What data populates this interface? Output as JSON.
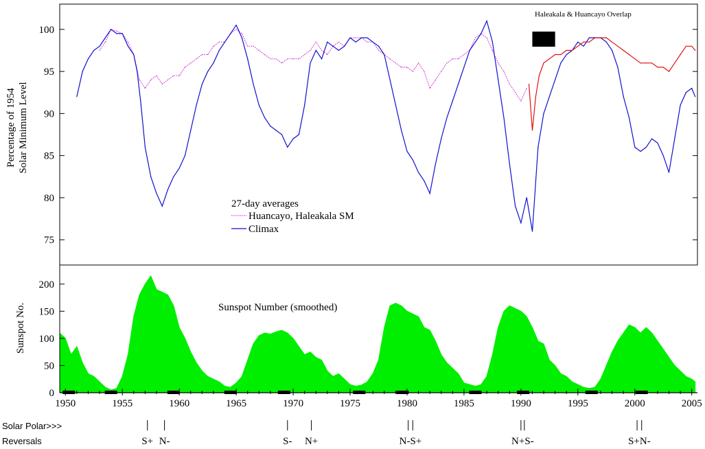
{
  "chart_data": [
    {
      "type": "line",
      "ylabel": "Percentage of 1954 Solar Minimum Level",
      "ylabel_lines": [
        "Percentage of 1954",
        "Solar Minimum Level"
      ],
      "ylim": [
        72,
        103
      ],
      "xlim": [
        1949.5,
        2005.5
      ],
      "yticks": [
        75,
        80,
        85,
        90,
        95,
        100
      ],
      "grid": false,
      "legend": {
        "title": "27-day averages",
        "position": "center-left"
      },
      "annotation": "Haleakala & Huancayo Overlap",
      "overlap_bar": [
        1991.0,
        1993.0
      ],
      "colors": {
        "huancayo": "#d633d6",
        "climax": "#1010d0",
        "haleakala": "#e01010"
      },
      "series": [
        {
          "name": "Huancayo, Haleakala SM",
          "style": "dotted",
          "x": [
            1953.0,
            1953.5,
            1954.0,
            1954.5,
            1955.0,
            1955.5,
            1956.0,
            1956.5,
            1957.0,
            1957.5,
            1958.0,
            1958.5,
            1959.0,
            1959.5,
            1960.0,
            1960.5,
            1961.0,
            1961.5,
            1962.0,
            1962.5,
            1963.0,
            1963.5,
            1964.0,
            1964.5,
            1965.0,
            1965.5,
            1966.0,
            1966.5,
            1967.0,
            1967.5,
            1968.0,
            1968.5,
            1969.0,
            1969.5,
            1970.0,
            1970.5,
            1971.0,
            1971.5,
            1972.0,
            1972.5,
            1973.0,
            1973.5,
            1974.0,
            1974.5,
            1975.0,
            1975.5,
            1976.0,
            1976.5,
            1977.0,
            1977.5,
            1978.0,
            1978.5,
            1979.0,
            1979.5,
            1980.0,
            1980.5,
            1981.0,
            1981.5,
            1982.0,
            1982.5,
            1983.0,
            1983.5,
            1984.0,
            1984.5,
            1985.0,
            1985.5,
            1986.0,
            1986.5,
            1987.0,
            1987.5,
            1988.0,
            1988.5,
            1989.0,
            1989.5,
            1990.0,
            1990.5
          ],
          "y": [
            97.5,
            98.5,
            100.0,
            99.8,
            99.5,
            98.5,
            97.0,
            94.0,
            93.0,
            94.0,
            94.5,
            93.5,
            94.0,
            94.5,
            94.5,
            95.5,
            96.0,
            96.5,
            97.0,
            97.0,
            98.0,
            98.5,
            98.5,
            99.5,
            100.0,
            99.5,
            98.0,
            98.0,
            97.5,
            97.0,
            96.5,
            96.5,
            96.0,
            96.5,
            96.5,
            96.5,
            97.0,
            97.5,
            98.5,
            97.5,
            97.0,
            98.0,
            98.5,
            98.0,
            99.0,
            99.0,
            99.0,
            98.5,
            98.5,
            97.5,
            97.0,
            96.5,
            96.0,
            95.5,
            95.5,
            95.0,
            96.0,
            95.0,
            93.0,
            94.0,
            95.0,
            96.0,
            96.5,
            96.5,
            97.0,
            97.5,
            99.0,
            99.5,
            99.0,
            97.5,
            96.0,
            95.0,
            93.5,
            92.5,
            91.5,
            93.0
          ]
        },
        {
          "name": "Climax",
          "style": "solid",
          "x": [
            1951.0,
            1951.5,
            1952.0,
            1952.5,
            1953.0,
            1953.5,
            1954.0,
            1954.5,
            1955.0,
            1955.5,
            1956.0,
            1956.3,
            1956.6,
            1957.0,
            1957.5,
            1958.0,
            1958.5,
            1959.0,
            1959.5,
            1960.0,
            1960.5,
            1961.0,
            1961.5,
            1962.0,
            1962.5,
            1963.0,
            1963.5,
            1964.0,
            1964.5,
            1965.0,
            1965.5,
            1966.0,
            1966.5,
            1967.0,
            1967.5,
            1968.0,
            1968.5,
            1969.0,
            1969.5,
            1970.0,
            1970.5,
            1971.0,
            1971.5,
            1972.0,
            1972.5,
            1973.0,
            1973.5,
            1974.0,
            1974.5,
            1975.0,
            1975.5,
            1976.0,
            1976.5,
            1977.0,
            1977.5,
            1978.0,
            1978.5,
            1979.0,
            1979.5,
            1980.0,
            1980.5,
            1981.0,
            1981.5,
            1982.0,
            1982.5,
            1983.0,
            1983.5,
            1984.0,
            1984.5,
            1985.0,
            1985.5,
            1986.0,
            1986.5,
            1987.0,
            1987.5,
            1988.0,
            1988.5,
            1989.0,
            1989.5,
            1990.0,
            1990.5,
            1991.0,
            1991.5,
            1992.0,
            1992.5,
            1993.0,
            1993.5,
            1994.0,
            1994.5,
            1995.0,
            1995.5,
            1996.0,
            1996.5,
            1997.0,
            1997.5,
            1998.0,
            1998.5,
            1999.0,
            1999.5,
            2000.0,
            2000.5,
            2001.0,
            2001.5,
            2002.0,
            2002.5,
            2003.0,
            2003.5,
            2004.0,
            2004.5,
            2005.0,
            2005.3
          ],
          "y": [
            92.0,
            95.0,
            96.5,
            97.5,
            98.0,
            99.0,
            100.0,
            99.5,
            99.5,
            98.0,
            97.0,
            95.0,
            91.5,
            86.0,
            82.5,
            80.5,
            79.0,
            81.0,
            82.5,
            83.5,
            85.0,
            88.0,
            91.0,
            93.5,
            95.0,
            96.0,
            97.5,
            98.5,
            99.5,
            100.5,
            99.0,
            96.5,
            93.5,
            91.0,
            89.5,
            88.5,
            88.0,
            87.5,
            86.0,
            87.0,
            87.5,
            91.0,
            96.0,
            97.5,
            96.5,
            98.5,
            98.0,
            97.5,
            98.0,
            99.0,
            98.5,
            99.0,
            99.0,
            98.5,
            98.0,
            97.0,
            94.0,
            91.0,
            88.0,
            85.5,
            84.5,
            83.0,
            82.0,
            80.5,
            84.0,
            87.0,
            89.5,
            91.5,
            93.5,
            95.5,
            97.5,
            98.5,
            99.5,
            101.0,
            98.5,
            94.0,
            89.5,
            84.0,
            79.0,
            77.0,
            80.0,
            76.0,
            86.0,
            90.0,
            92.0,
            94.0,
            96.0,
            97.0,
            97.5,
            98.5,
            98.0,
            99.0,
            99.0,
            99.0,
            98.5,
            97.5,
            95.5,
            92.0,
            89.5,
            86.0,
            85.5,
            86.0,
            87.0,
            86.5,
            85.0,
            83.0,
            87.0,
            91.0,
            92.5,
            93.0,
            92.0
          ]
        },
        {
          "name": "Haleakala",
          "style": "solid",
          "x": [
            1990.7,
            1991.0,
            1991.3,
            1991.6,
            1992.0,
            1992.5,
            1993.0,
            1993.5,
            1994.0,
            1994.5,
            1995.0,
            1995.5,
            1996.0,
            1996.5,
            1997.0,
            1997.5,
            1998.0,
            1998.5,
            1999.0,
            1999.5,
            2000.0,
            2000.5,
            2001.0,
            2001.5,
            2002.0,
            2002.5,
            2003.0,
            2003.5,
            2004.0,
            2004.5,
            2005.0,
            2005.3
          ],
          "y": [
            93.5,
            88.0,
            92.0,
            94.5,
            96.0,
            96.5,
            97.0,
            97.0,
            97.5,
            97.5,
            98.0,
            98.5,
            98.5,
            99.0,
            99.0,
            99.0,
            98.5,
            98.0,
            97.5,
            97.0,
            96.5,
            96.0,
            96.0,
            96.0,
            95.5,
            95.5,
            95.0,
            96.0,
            97.0,
            98.0,
            98.0,
            97.5
          ]
        }
      ]
    },
    {
      "type": "area",
      "title": "Sunspot Number (smoothed)",
      "ylabel": "Sunspot No.",
      "xlabel": "",
      "ylim": [
        0,
        225
      ],
      "xlim": [
        1949.5,
        2005.5
      ],
      "yticks": [
        0,
        50,
        100,
        150,
        200
      ],
      "xticks": [
        1950,
        1955,
        1960,
        1965,
        1970,
        1975,
        1980,
        1985,
        1990,
        1995,
        2000,
        2005
      ],
      "color": "#00ee00",
      "x": [
        1949.5,
        1950.0,
        1950.5,
        1951.0,
        1951.5,
        1952.0,
        1952.5,
        1953.0,
        1953.5,
        1954.0,
        1954.5,
        1955.0,
        1955.5,
        1956.0,
        1956.5,
        1957.0,
        1957.5,
        1958.0,
        1958.5,
        1959.0,
        1959.5,
        1960.0,
        1960.5,
        1961.0,
        1961.5,
        1962.0,
        1962.5,
        1963.0,
        1963.5,
        1964.0,
        1964.5,
        1965.0,
        1965.5,
        1966.0,
        1966.5,
        1967.0,
        1967.5,
        1968.0,
        1968.5,
        1969.0,
        1969.5,
        1970.0,
        1970.5,
        1971.0,
        1971.5,
        1972.0,
        1972.5,
        1973.0,
        1973.5,
        1974.0,
        1974.5,
        1975.0,
        1975.5,
        1976.0,
        1976.5,
        1977.0,
        1977.5,
        1978.0,
        1978.5,
        1979.0,
        1979.5,
        1980.0,
        1980.5,
        1981.0,
        1981.5,
        1982.0,
        1982.5,
        1983.0,
        1983.5,
        1984.0,
        1984.5,
        1985.0,
        1985.5,
        1986.0,
        1986.5,
        1987.0,
        1987.5,
        1988.0,
        1988.5,
        1989.0,
        1989.5,
        1990.0,
        1990.5,
        1991.0,
        1991.5,
        1992.0,
        1992.5,
        1993.0,
        1993.5,
        1994.0,
        1994.5,
        1995.0,
        1995.5,
        1996.0,
        1996.5,
        1997.0,
        1997.5,
        1998.0,
        1998.5,
        1999.0,
        1999.5,
        2000.0,
        2000.5,
        2001.0,
        2001.5,
        2002.0,
        2002.5,
        2003.0,
        2003.5,
        2004.0,
        2004.5,
        2005.0,
        2005.3
      ],
      "y": [
        110,
        100,
        70,
        85,
        55,
        35,
        30,
        20,
        10,
        5,
        8,
        30,
        70,
        140,
        180,
        200,
        215,
        190,
        185,
        180,
        160,
        120,
        100,
        75,
        55,
        40,
        30,
        25,
        20,
        12,
        10,
        18,
        30,
        60,
        90,
        105,
        110,
        108,
        112,
        115,
        110,
        100,
        85,
        70,
        75,
        65,
        60,
        40,
        30,
        35,
        25,
        15,
        12,
        14,
        20,
        35,
        60,
        120,
        160,
        165,
        160,
        150,
        145,
        140,
        120,
        115,
        95,
        70,
        55,
        45,
        35,
        18,
        15,
        12,
        15,
        30,
        70,
        120,
        150,
        160,
        155,
        150,
        140,
        120,
        95,
        90,
        60,
        50,
        35,
        30,
        20,
        15,
        10,
        8,
        10,
        25,
        50,
        75,
        95,
        110,
        125,
        120,
        110,
        120,
        110,
        95,
        80,
        65,
        50,
        40,
        30,
        25,
        20
      ]
    }
  ],
  "solar_polar": {
    "label_line1": "Solar Polar>>>",
    "label_line2": "Reversals",
    "events": [
      {
        "label": "S+",
        "ticks": [
          1957.2
        ]
      },
      {
        "label": "N-",
        "ticks": [
          1958.7
        ]
      },
      {
        "label": "S-",
        "ticks": [
          1969.5
        ]
      },
      {
        "label": "N+",
        "ticks": [
          1971.6
        ]
      },
      {
        "label": "N-S+",
        "ticks": [
          1980.1,
          1980.5
        ]
      },
      {
        "label": "N+S-",
        "ticks": [
          1990.0,
          1990.3
        ]
      },
      {
        "label": "S+N-",
        "ticks": [
          2000.2,
          2000.6
        ]
      }
    ]
  }
}
